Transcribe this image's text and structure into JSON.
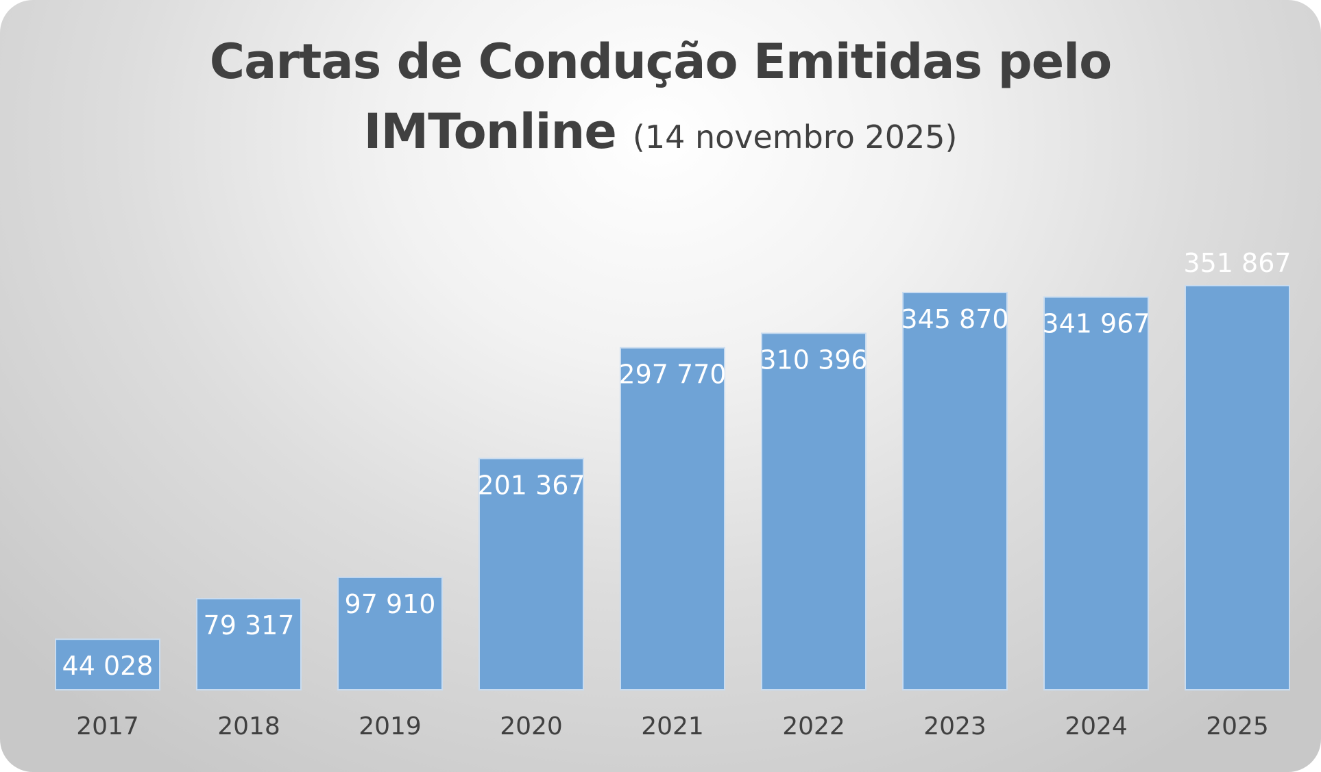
{
  "chart_data": {
    "type": "bar",
    "title": "Cartas de Condução Emitidas pelo",
    "title_line2": "IMTonline",
    "subtitle": "(14 novembro 2025)",
    "categories": [
      "2017",
      "2018",
      "2019",
      "2020",
      "2021",
      "2022",
      "2023",
      "2024",
      "2025"
    ],
    "values": [
      44028,
      79317,
      97910,
      201367,
      297770,
      310396,
      345870,
      341967,
      351867
    ],
    "value_labels": [
      "44 028",
      "79 317",
      "97 910",
      "201 367",
      "297 770",
      "310 396",
      "345 870",
      "341 967",
      "351 867"
    ],
    "xlabel": "",
    "ylabel": "",
    "ylim": [
      0,
      400000
    ],
    "grid": false,
    "legend": "none",
    "bar_color": "#6fa3d6"
  }
}
